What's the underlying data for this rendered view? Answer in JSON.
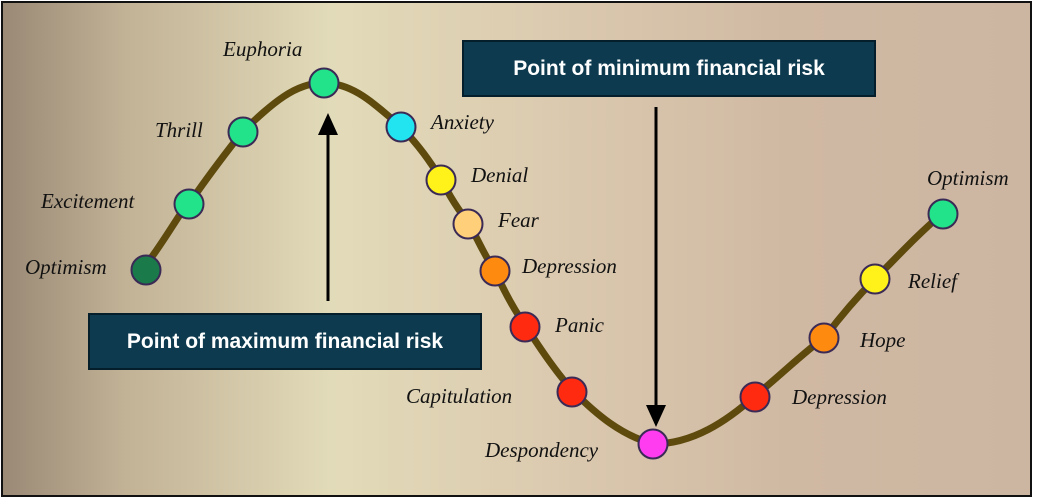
{
  "callouts": {
    "minimum_risk": "Point of minimum financial risk",
    "maximum_risk": "Point of maximum financial risk"
  },
  "stages": [
    {
      "label": "Optimism",
      "color": "#1a7a4a"
    },
    {
      "label": "Excitement",
      "color": "#22e28a"
    },
    {
      "label": "Thrill",
      "color": "#22e28a"
    },
    {
      "label": "Euphoria",
      "color": "#22e28a"
    },
    {
      "label": "Anxiety",
      "color": "#22e4f0"
    },
    {
      "label": "Denial",
      "color": "#fff21a"
    },
    {
      "label": "Fear",
      "color": "#ffcf7a"
    },
    {
      "label": "Depression",
      "color": "#ff8a10"
    },
    {
      "label": "Panic",
      "color": "#ff2a10"
    },
    {
      "label": "Capitulation",
      "color": "#ff2a10"
    },
    {
      "label": "Despondency",
      "color": "#ff3cf0"
    },
    {
      "label": "Depression",
      "color": "#ff2a10"
    },
    {
      "label": "Hope",
      "color": "#ff8a10"
    },
    {
      "label": "Relief",
      "color": "#fff21a"
    },
    {
      "label": "Optimism",
      "color": "#22e28a"
    }
  ],
  "colors": {
    "curve": "#5e4a0c",
    "callout_bg": "#0d3a4f",
    "arrow": "#000000"
  }
}
